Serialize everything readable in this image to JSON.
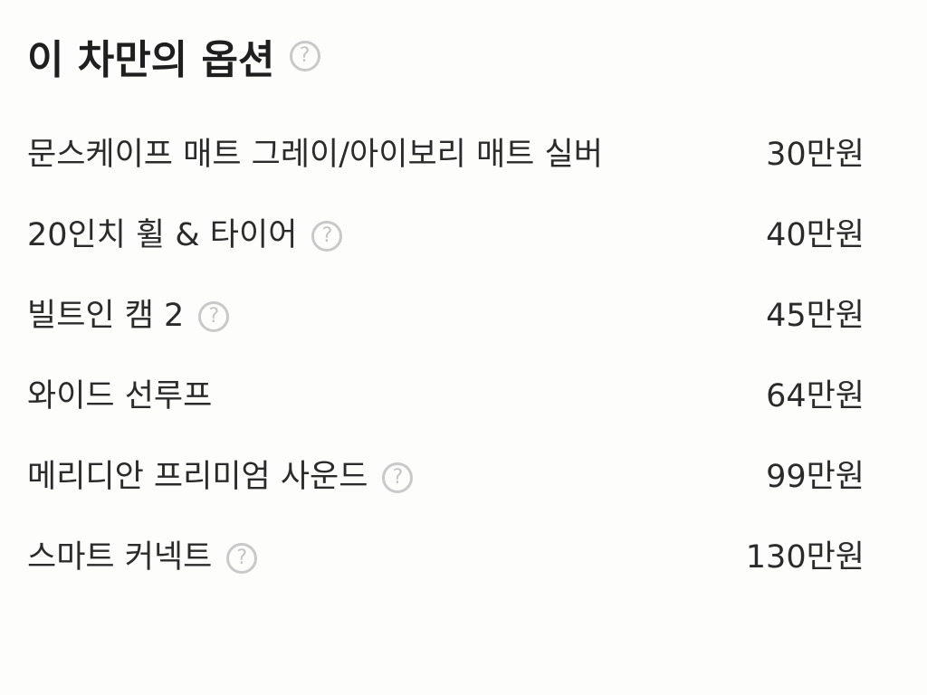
{
  "header": {
    "title": "이 차만의 옵션",
    "help_icon": "question-circle-icon"
  },
  "options": [
    {
      "label": "문스케이프 매트 그레이/아이보리 매트 실버",
      "price": "30만원",
      "has_help": false
    },
    {
      "label": "20인치 휠 & 타이어",
      "price": "40만원",
      "has_help": true
    },
    {
      "label": "빌트인 캠 2",
      "price": "45만원",
      "has_help": true
    },
    {
      "label": "와이드 선루프",
      "price": "64만원",
      "has_help": false
    },
    {
      "label": "메리디안 프리미엄 사운드",
      "price": "99만원",
      "has_help": true
    },
    {
      "label": "스마트 커넥트",
      "price": "130만원",
      "has_help": true
    }
  ]
}
